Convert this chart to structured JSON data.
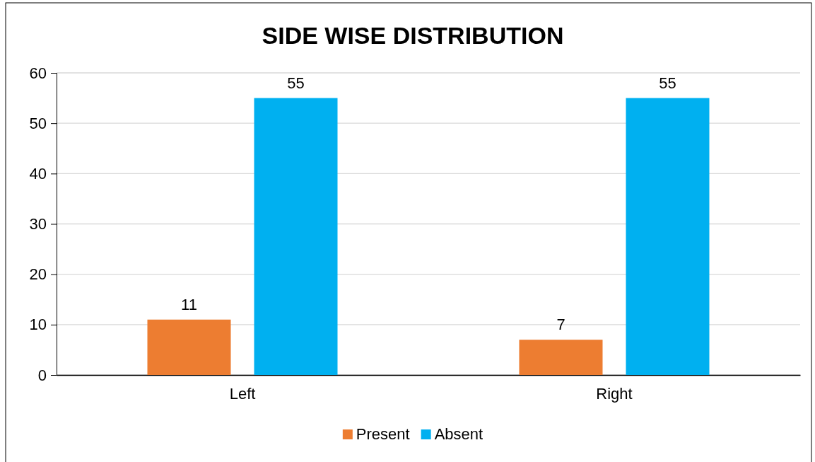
{
  "chart_data": {
    "type": "bar",
    "title": "SIDE WISE DISTRIBUTION",
    "categories": [
      "Left",
      "Right"
    ],
    "series": [
      {
        "name": "Present",
        "color": "#ed7d31",
        "values": [
          11,
          7
        ]
      },
      {
        "name": "Absent",
        "color": "#00b0f0",
        "values": [
          55,
          55
        ]
      }
    ],
    "ylim": [
      0,
      60
    ],
    "yticks": [
      0,
      10,
      20,
      30,
      40,
      50,
      60
    ],
    "grid": "y",
    "legend": "bottom",
    "data_labels": true
  }
}
